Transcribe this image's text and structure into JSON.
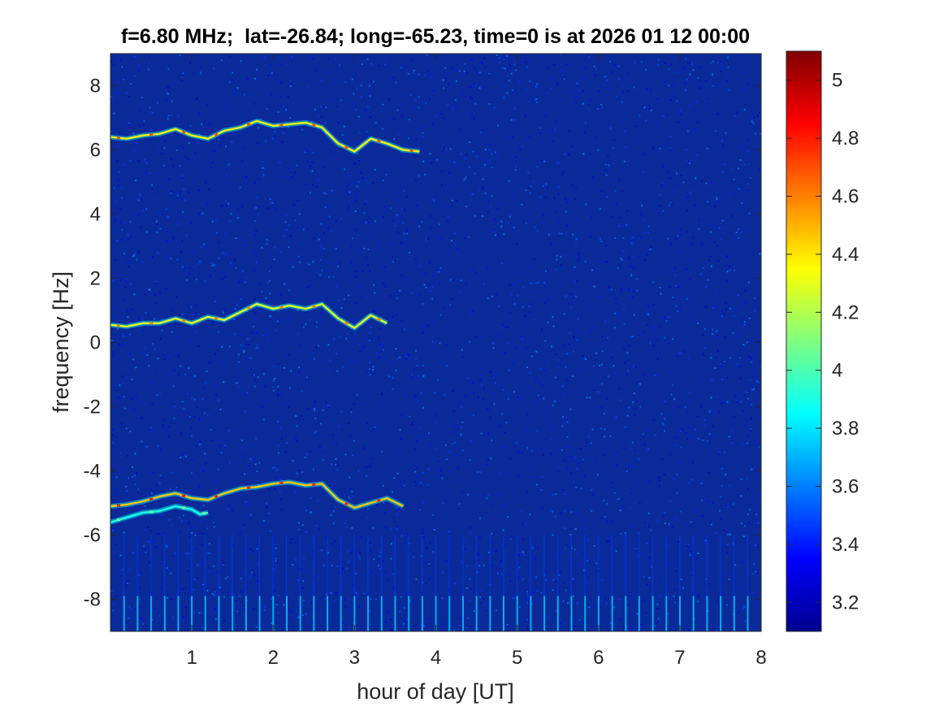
{
  "chart_data": {
    "type": "heatmap",
    "title": "f=6.80 MHz;  lat=-26.84; long=-65.23, time=0 is at 2026 01 12 00:00",
    "xlabel": "hour of day [UT]",
    "ylabel": "frequency [Hz]",
    "xlim": [
      0,
      8
    ],
    "ylim": [
      -9,
      9
    ],
    "x_ticks": [
      1,
      2,
      3,
      4,
      5,
      6,
      7,
      8
    ],
    "x_tick_labels": [
      "1",
      "2",
      "3",
      "4",
      "5",
      "6",
      "7",
      "8"
    ],
    "y_ticks": [
      -8,
      -6,
      -4,
      -2,
      0,
      2,
      4,
      6,
      8
    ],
    "y_tick_labels": [
      "-8",
      "-6",
      "-4",
      "-2",
      "0",
      "2",
      "4",
      "6",
      "8"
    ],
    "colormap": "jet",
    "color_range": [
      3.1,
      5.1
    ],
    "colorbar_ticks": [
      3.2,
      3.4,
      3.6,
      3.8,
      4,
      4.2,
      4.4,
      4.6,
      4.8,
      5
    ],
    "colorbar_tick_labels": [
      "3.2",
      "3.4",
      "3.6",
      "3.8",
      "4",
      "4.2",
      "4.4",
      "4.6",
      "4.8",
      "5"
    ],
    "background_value": 3.15,
    "traces": [
      {
        "peak_value": 4.7,
        "x": [
          0.0,
          0.2,
          0.4,
          0.6,
          0.8,
          1.0,
          1.2,
          1.4,
          1.6,
          1.8,
          2.0,
          2.2,
          2.4,
          2.6,
          2.8,
          3.0,
          3.2,
          3.4,
          3.6,
          3.8
        ],
        "y": [
          6.4,
          6.35,
          6.45,
          6.5,
          6.65,
          6.45,
          6.35,
          6.6,
          6.7,
          6.9,
          6.75,
          6.8,
          6.85,
          6.7,
          6.2,
          5.95,
          6.35,
          6.2,
          6.0,
          5.95
        ]
      },
      {
        "peak_value": 4.6,
        "x": [
          0.0,
          0.2,
          0.4,
          0.6,
          0.8,
          1.0,
          1.2,
          1.4,
          1.6,
          1.8,
          2.0,
          2.2,
          2.4,
          2.6,
          2.8,
          3.0,
          3.2,
          3.4
        ],
        "y": [
          0.55,
          0.5,
          0.6,
          0.6,
          0.75,
          0.6,
          0.8,
          0.7,
          0.95,
          1.2,
          1.05,
          1.15,
          1.05,
          1.2,
          0.75,
          0.45,
          0.85,
          0.6
        ]
      },
      {
        "peak_value": 4.8,
        "x": [
          0.0,
          0.2,
          0.4,
          0.6,
          0.8,
          1.0,
          1.2,
          1.4,
          1.6,
          1.8,
          2.0,
          2.2,
          2.4,
          2.6,
          2.8,
          3.0,
          3.2,
          3.4,
          3.6
        ],
        "y": [
          -5.1,
          -5.05,
          -4.95,
          -4.8,
          -4.7,
          -4.85,
          -4.9,
          -4.7,
          -4.55,
          -4.5,
          -4.4,
          -4.35,
          -4.45,
          -4.4,
          -4.9,
          -5.15,
          -5.0,
          -4.85,
          -5.1
        ]
      },
      {
        "peak_value": 4.1,
        "x": [
          0.0,
          0.2,
          0.4,
          0.6,
          0.8,
          1.0,
          1.1,
          1.2
        ],
        "y": [
          -5.6,
          -5.45,
          -5.3,
          -5.25,
          -5.1,
          -5.2,
          -5.35,
          -5.3
        ]
      }
    ],
    "pulse_spacing_hours": 0.1667,
    "grid": false,
    "legend": "none"
  }
}
